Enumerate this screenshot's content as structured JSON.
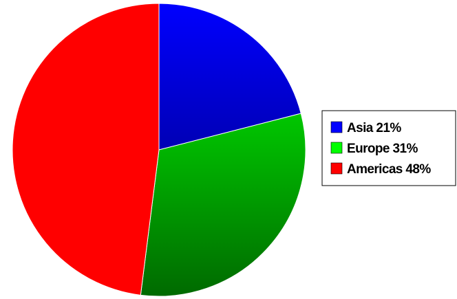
{
  "chart_data": {
    "type": "pie",
    "slices": [
      {
        "label": "Asia 21%",
        "category": "Asia",
        "value": 21,
        "color": "#0000ff",
        "shade": "#00006a"
      },
      {
        "label": "Europe 31%",
        "category": "Europe",
        "value": 31,
        "color": "#00ff00",
        "shade": "#006a00"
      },
      {
        "label": "Americas 48%",
        "category": "Americas",
        "value": 48,
        "color": "#ff0000",
        "shade": "#ff0000"
      }
    ],
    "start": "12 o'clock",
    "direction": "clockwise",
    "legend": {
      "position": "right",
      "entries": [
        "Asia 21%",
        "Europe 31%",
        "Americas 48%"
      ]
    }
  }
}
